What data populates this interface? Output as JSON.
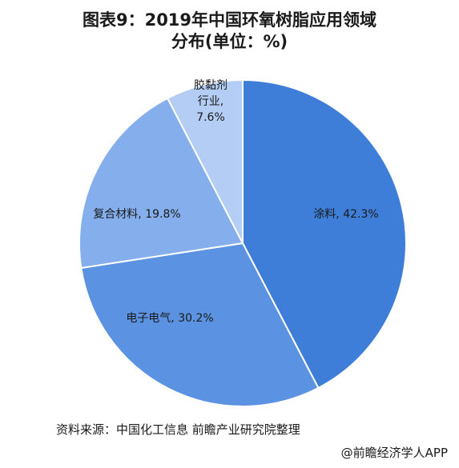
{
  "title_line1": "图表9：2019年中国环氧树脂应用领域",
  "title_line2": "分布(单位：%)",
  "source": "资料来源：中国化工信息 前瞻产业研究院整理",
  "credit": "@前瞻经济学人APP",
  "watermark": "前瞻产业研究院",
  "colors": {
    "涂料": "#3f7ed8",
    "电子电气": "#5b93e2",
    "复合材料": "#84afec",
    "胶黏剂行业": "#b3cdf4",
    "border": "#ffffff"
  },
  "chart_data": {
    "type": "pie",
    "title": "图表9：2019年中国环氧树脂应用领域分布(单位：%)",
    "unit": "%",
    "start": "12 o'clock",
    "direction": "clockwise",
    "slices": [
      {
        "label": "涂料",
        "value": 42.3,
        "label_lines": [
          "涂料, 42.3%"
        ]
      },
      {
        "label": "电子电气",
        "value": 30.2,
        "label_lines": [
          "电子电气, 30.2%"
        ]
      },
      {
        "label": "复合材料",
        "value": 19.8,
        "label_lines": [
          "复合材料, 19.8%"
        ]
      },
      {
        "label": "胶黏剂行业",
        "value": 7.6,
        "label_lines": [
          "胶黏剂",
          "行业,",
          "7.6%"
        ]
      }
    ]
  }
}
